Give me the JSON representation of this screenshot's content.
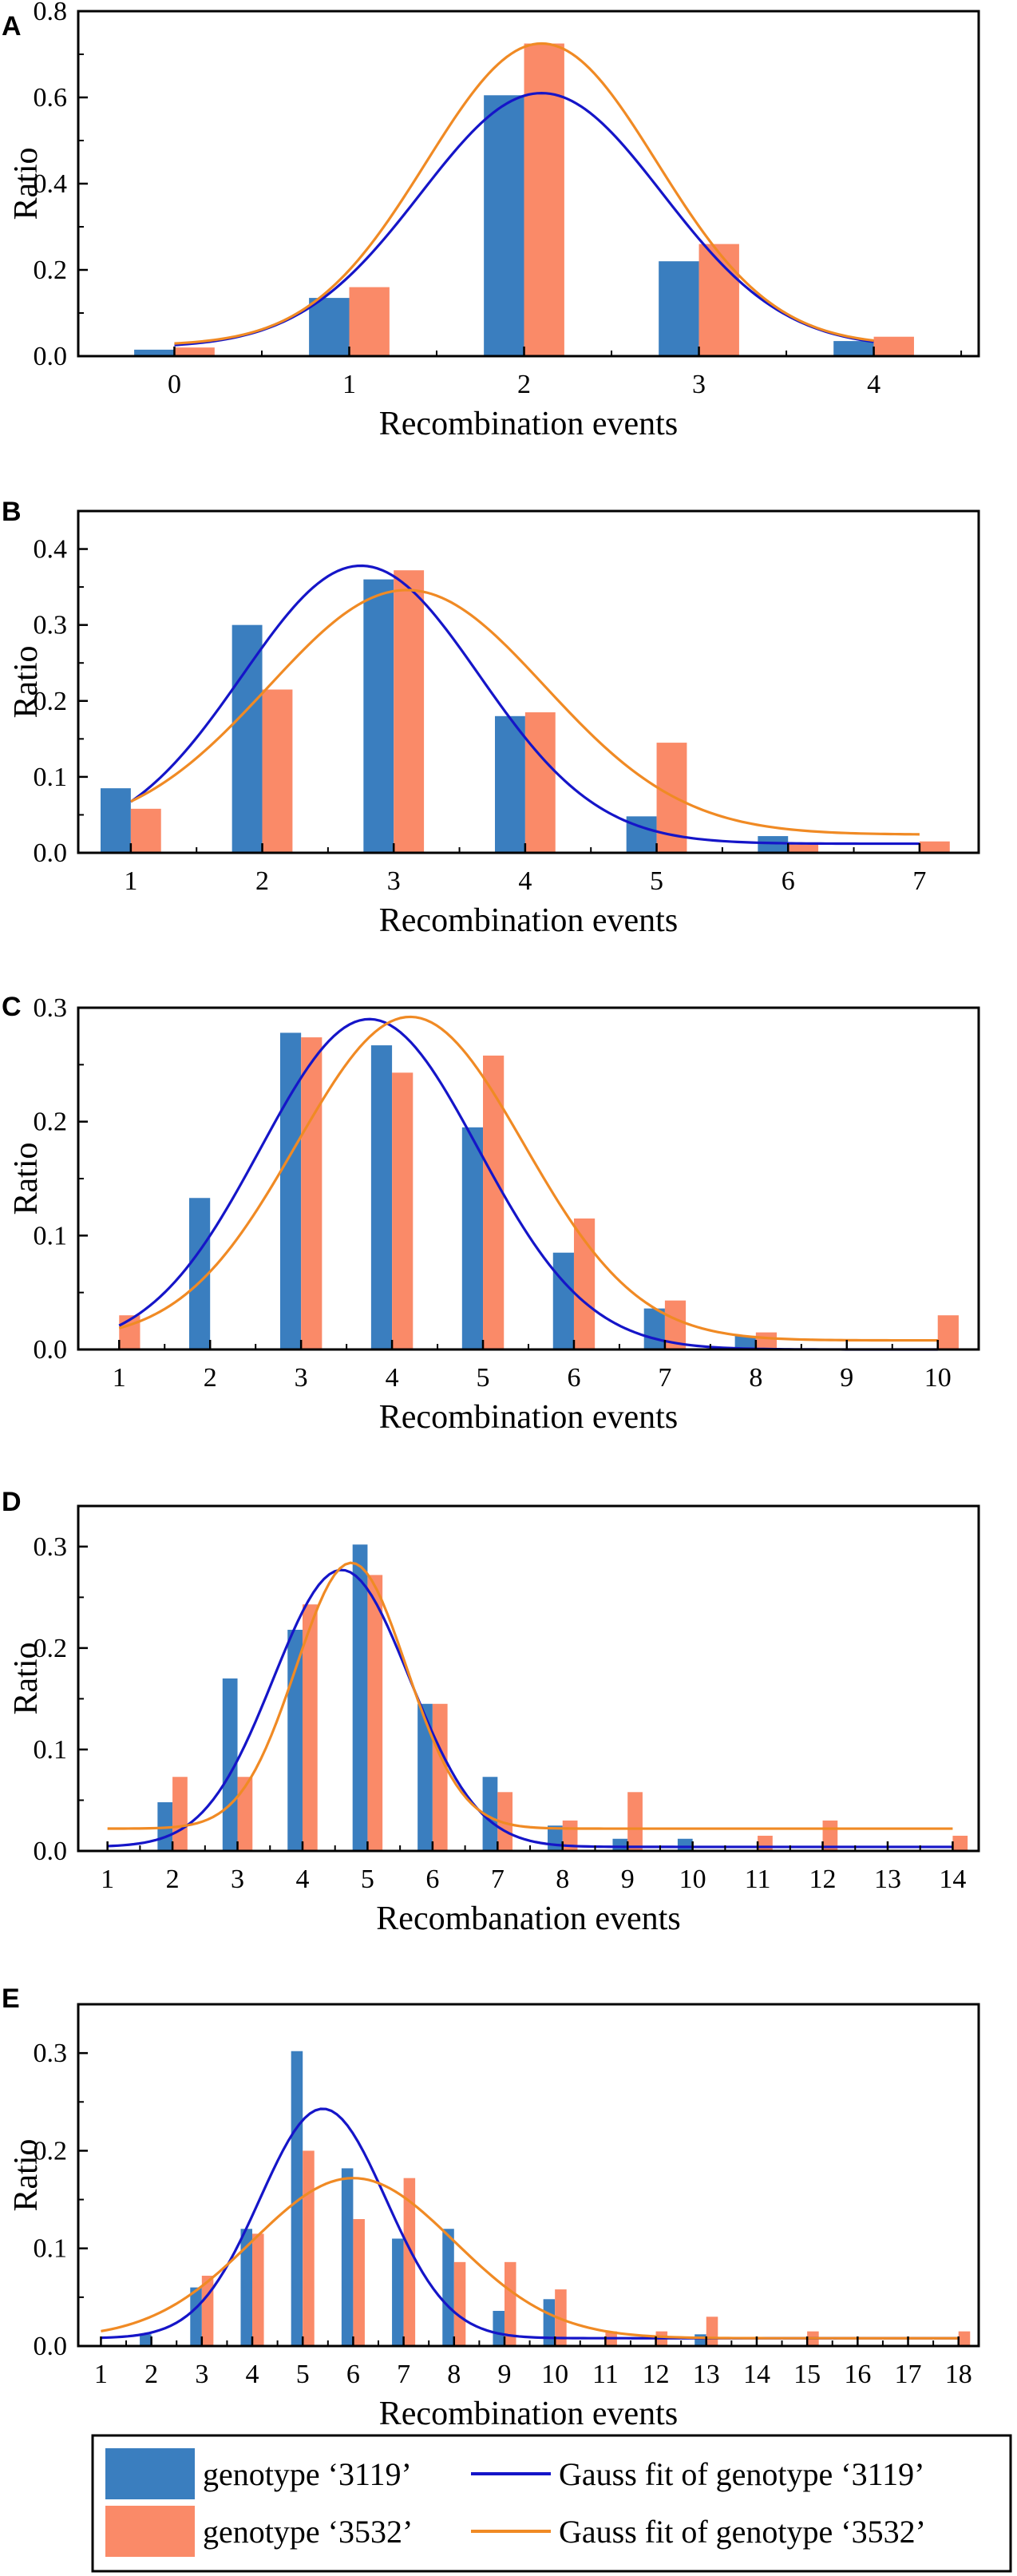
{
  "legend": {
    "items": [
      {
        "label": "genotype ‘3119’",
        "kind": "bar",
        "color": "#3a7ebf"
      },
      {
        "label": "Gauss fit of genotype ‘3119’",
        "kind": "line",
        "color": "#1515c8"
      },
      {
        "label": "genotype ‘3532’",
        "kind": "bar",
        "color": "#fa8a68"
      },
      {
        "label": "Gauss fit of genotype ‘3532’",
        "kind": "line",
        "color": "#f08a24"
      }
    ]
  },
  "colors": {
    "bar_3119": "#3a7ebf",
    "bar_3532": "#fa8a68",
    "fit_3119": "#1515c8",
    "fit_3532": "#f08a24"
  },
  "chart_data": [
    {
      "type": "bar",
      "panel": "A",
      "xlabel": "Recombination events",
      "ylabel": "Ratio",
      "categories": [
        0,
        1,
        2,
        3,
        4
      ],
      "xlim": [
        -0.55,
        4.6
      ],
      "ylim": [
        0,
        0.8
      ],
      "yticks": [
        0.0,
        0.2,
        0.4,
        0.6,
        0.8
      ],
      "ytick_labels": [
        "0.0",
        "0.2",
        "0.4",
        "0.6",
        "0.8"
      ],
      "series": [
        {
          "name": "genotype ‘3119’",
          "values": [
            0.015,
            0.135,
            0.605,
            0.22,
            0.035
          ]
        },
        {
          "name": "genotype ‘3532’",
          "values": [
            0.02,
            0.16,
            0.725,
            0.26,
            0.045
          ]
        }
      ],
      "fits": [
        {
          "name": "Gauss fit of genotype ‘3119’",
          "y0": 0.02,
          "A": 0.59,
          "xc": 2.1,
          "w": 1.38,
          "x_range": [
            0,
            4
          ]
        },
        {
          "name": "Gauss fit of genotype ‘3532’",
          "y0": 0.025,
          "A": 0.7,
          "xc": 2.1,
          "w": 1.32,
          "x_range": [
            0,
            4
          ]
        }
      ]
    },
    {
      "type": "bar",
      "panel": "B",
      "xlabel": "Recombination events",
      "ylabel": "Ratio",
      "categories": [
        1,
        2,
        3,
        4,
        5,
        6,
        7
      ],
      "xlim": [
        0.6,
        7.45
      ],
      "ylim": [
        0,
        0.45
      ],
      "yticks": [
        0.0,
        0.1,
        0.2,
        0.3,
        0.4
      ],
      "ytick_labels": [
        "0.0",
        "0.1",
        "0.2",
        "0.3",
        "0.4"
      ],
      "series": [
        {
          "name": "genotype ‘3119’",
          "values": [
            0.085,
            0.3,
            0.36,
            0.18,
            0.048,
            0.022,
            0.0
          ]
        },
        {
          "name": "genotype ‘3532’",
          "values": [
            0.058,
            0.215,
            0.372,
            0.185,
            0.145,
            0.012,
            0.015
          ]
        }
      ],
      "fits": [
        {
          "name": "Gauss fit of genotype ‘3119’",
          "y0": 0.012,
          "A": 0.366,
          "xc": 2.75,
          "w": 1.8,
          "x_range": [
            1,
            7
          ]
        },
        {
          "name": "Gauss fit of genotype ‘3532’",
          "y0": 0.024,
          "A": 0.322,
          "xc": 3.1,
          "w": 2.1,
          "x_range": [
            1,
            7
          ]
        }
      ]
    },
    {
      "type": "bar",
      "panel": "C",
      "xlabel": "Recombination events",
      "ylabel": "Ratio",
      "categories": [
        1,
        2,
        3,
        4,
        5,
        6,
        7,
        8,
        9,
        10
      ],
      "xlim": [
        0.55,
        10.45
      ],
      "ylim": [
        0,
        0.3
      ],
      "yticks": [
        0.0,
        0.1,
        0.2,
        0.3
      ],
      "ytick_labels": [
        "0.0",
        "0.1",
        "0.2",
        "0.3"
      ],
      "series": [
        {
          "name": "genotype ‘3119’",
          "values": [
            0.0,
            0.133,
            0.278,
            0.267,
            0.195,
            0.085,
            0.036,
            0.012,
            0.0,
            0.0
          ]
        },
        {
          "name": "genotype ‘3532’",
          "values": [
            0.03,
            0.0,
            0.274,
            0.243,
            0.258,
            0.115,
            0.043,
            0.015,
            0.0,
            0.03
          ]
        }
      ],
      "fits": [
        {
          "name": "Gauss fit of genotype ‘3119’",
          "y0": 0.0,
          "A": 0.29,
          "xc": 3.75,
          "w": 2.4,
          "x_range": [
            1,
            10
          ]
        },
        {
          "name": "Gauss fit of genotype ‘3532’",
          "y0": 0.008,
          "A": 0.284,
          "xc": 4.2,
          "w": 2.5,
          "x_range": [
            1,
            10
          ]
        }
      ]
    },
    {
      "type": "bar",
      "panel": "D",
      "xlabel": "Recombanation events",
      "ylabel": "Ratio",
      "categories": [
        1,
        2,
        3,
        4,
        5,
        6,
        7,
        8,
        9,
        10,
        11,
        12,
        13,
        14
      ],
      "xlim": [
        0.55,
        14.4
      ],
      "ylim": [
        0,
        0.34
      ],
      "yticks": [
        0.0,
        0.1,
        0.2,
        0.3
      ],
      "ytick_labels": [
        "0.0",
        "0.1",
        "0.2",
        "0.3"
      ],
      "series": [
        {
          "name": "genotype ‘3119’",
          "values": [
            0.0,
            0.048,
            0.17,
            0.218,
            0.302,
            0.145,
            0.073,
            0.025,
            0.012,
            0.012,
            0.0,
            0.0,
            0.0,
            0.0
          ]
        },
        {
          "name": "genotype ‘3532’",
          "values": [
            0.0,
            0.073,
            0.073,
            0.243,
            0.272,
            0.145,
            0.058,
            0.03,
            0.058,
            0.0,
            0.015,
            0.03,
            0.0,
            0.015
          ]
        }
      ],
      "fits": [
        {
          "name": "Gauss fit of genotype ‘3119’",
          "y0": 0.004,
          "A": 0.273,
          "xc": 4.6,
          "w": 2.1,
          "x_range": [
            1,
            14
          ]
        },
        {
          "name": "Gauss fit of genotype ‘3532’",
          "y0": 0.022,
          "A": 0.262,
          "xc": 4.75,
          "w": 1.7,
          "x_range": [
            1,
            14
          ]
        }
      ]
    },
    {
      "type": "bar",
      "panel": "E",
      "xlabel": "Recombination events",
      "ylabel": "Ratio",
      "categories": [
        1,
        2,
        3,
        4,
        5,
        6,
        7,
        8,
        9,
        10,
        11,
        12,
        13,
        14,
        15,
        16,
        17,
        18
      ],
      "xlim": [
        0.55,
        18.4
      ],
      "ylim": [
        0,
        0.35
      ],
      "yticks": [
        0.0,
        0.1,
        0.2,
        0.3
      ],
      "ytick_labels": [
        "0.0",
        "0.1",
        "0.2",
        "0.3"
      ],
      "series": [
        {
          "name": "genotype ‘3119’",
          "values": [
            0.0,
            0.012,
            0.06,
            0.12,
            0.302,
            0.182,
            0.11,
            0.12,
            0.036,
            0.048,
            0.0,
            0.0,
            0.012,
            0.0,
            0.0,
            0.0,
            0.0,
            0.0
          ]
        },
        {
          "name": "genotype ‘3532’",
          "values": [
            0.0,
            0.0,
            0.072,
            0.115,
            0.2,
            0.13,
            0.172,
            0.086,
            0.086,
            0.058,
            0.015,
            0.015,
            0.03,
            0.0,
            0.015,
            0.0,
            0.0,
            0.015
          ]
        }
      ],
      "fits": [
        {
          "name": "Gauss fit of genotype ‘3119’",
          "y0": 0.008,
          "A": 0.235,
          "xc": 5.4,
          "w": 2.5,
          "x_range": [
            1,
            18
          ]
        },
        {
          "name": "Gauss fit of genotype ‘3532’",
          "y0": 0.008,
          "A": 0.164,
          "xc": 6.0,
          "w": 4.0,
          "x_range": [
            1,
            18
          ]
        }
      ]
    }
  ]
}
